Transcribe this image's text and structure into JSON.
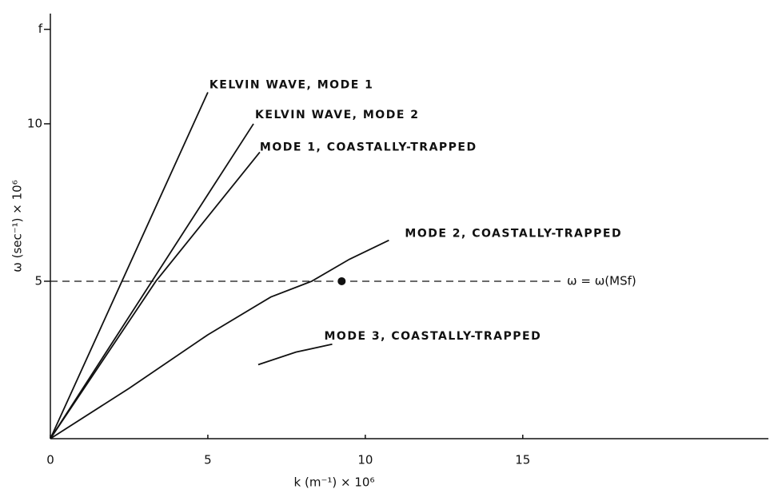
{
  "chart_data": {
    "type": "line",
    "xlabel": "k (m⁻¹) × 10⁶",
    "ylabel": "ω (sec⁻¹) × 10⁶",
    "xlim": [
      0,
      22.8
    ],
    "ylim": [
      0,
      13.5
    ],
    "xticks": [
      0,
      5,
      10,
      15
    ],
    "yticks": [
      5,
      10,
      {
        "value": 13,
        "label": "f"
      }
    ],
    "color": "#111111",
    "series": [
      {
        "name": "KELVIN WAVE, MODE 1",
        "x": [
          0,
          5.0
        ],
        "values": [
          0,
          11.0
        ]
      },
      {
        "name": "KELVIN WAVE, MODE 2",
        "x": [
          0,
          6.45
        ],
        "values": [
          0,
          10.0
        ]
      },
      {
        "name": "MODE 1, COASTALLY-TRAPPED",
        "x": [
          0,
          3.35,
          6.65
        ],
        "values": [
          0,
          5,
          9.1
        ]
      },
      {
        "name": "MODE 2, COASTALLY-TRAPPED",
        "x": [
          0,
          2.5,
          5,
          7,
          8.3,
          9.5,
          10.75
        ],
        "values": [
          0,
          1.6,
          3.3,
          4.5,
          5,
          5.7,
          6.3
        ]
      },
      {
        "name": "MODE 3, COASTALLY-TRAPPED",
        "x": [
          6.6,
          7.8,
          8.95
        ],
        "values": [
          2.35,
          2.75,
          3.0
        ]
      }
    ],
    "reference_lines": [
      {
        "y": 5,
        "x_end": 16.2,
        "label": "ω = ω(MSf)"
      }
    ],
    "points": [
      {
        "x": 9.25,
        "y": 5
      }
    ]
  }
}
